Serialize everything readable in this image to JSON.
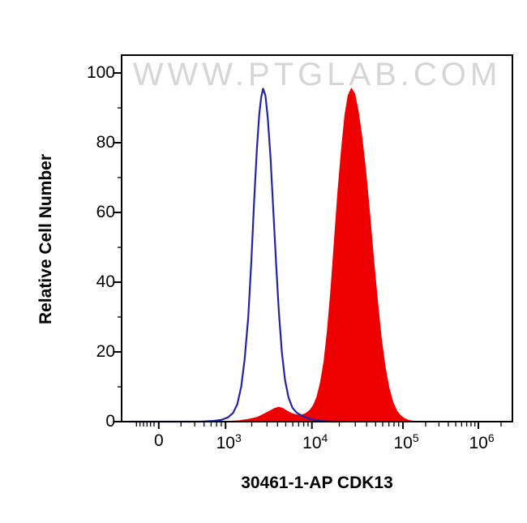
{
  "watermark": {
    "text": "WWW.PTGLAB.COM"
  },
  "chart_data": {
    "type": "area",
    "subtype": "flow-cytometry-histogram",
    "title": "30461-1-AP CDK13",
    "xlabel": "",
    "ylabel": "Relative Cell Number",
    "ylim": [
      0,
      100
    ],
    "y_ticks": [
      0,
      20,
      40,
      60,
      80,
      100
    ],
    "y_minor_ticks": [
      10,
      30,
      50,
      70,
      90
    ],
    "x_scale": "biexponential-log",
    "x_ticks": [
      {
        "text": "0",
        "sup": "",
        "f": 0.095
      },
      {
        "text": "10",
        "sup": "3",
        "f": 0.266
      },
      {
        "text": "10",
        "sup": "4",
        "f": 0.487
      },
      {
        "text": "10",
        "sup": "5",
        "f": 0.72
      },
      {
        "text": "10",
        "sup": "6",
        "f": 0.913
      }
    ],
    "x_minor_ticks_f": [
      0.038,
      0.047,
      0.056,
      0.065,
      0.074,
      0.083,
      0.152,
      0.187,
      0.211,
      0.229,
      0.243,
      0.255,
      0.333,
      0.372,
      0.399,
      0.42,
      0.438,
      0.453,
      0.466,
      0.477,
      0.557,
      0.598,
      0.627,
      0.65,
      0.668,
      0.684,
      0.697,
      0.709,
      0.778,
      0.812,
      0.836,
      0.855,
      0.87,
      0.883,
      0.894,
      0.904,
      0.971
    ],
    "grid": false,
    "legend_position": "none",
    "series": [
      {
        "name": "red-filled-histogram (CDK13 stained, peak ~2.5e4, height ~95)",
        "color": "#EE0000",
        "fill": "#EE0000",
        "points": [
          [
            0.27,
            0
          ],
          [
            0.3,
            0.2
          ],
          [
            0.325,
            0.6
          ],
          [
            0.348,
            1.2
          ],
          [
            0.366,
            2.2
          ],
          [
            0.381,
            3.1
          ],
          [
            0.393,
            3.8
          ],
          [
            0.403,
            4.1
          ],
          [
            0.413,
            3.7
          ],
          [
            0.423,
            3.0
          ],
          [
            0.433,
            2.4
          ],
          [
            0.443,
            2.0
          ],
          [
            0.453,
            1.8
          ],
          [
            0.463,
            1.9
          ],
          [
            0.473,
            2.4
          ],
          [
            0.482,
            3.2
          ],
          [
            0.491,
            4.6
          ],
          [
            0.5,
            7
          ],
          [
            0.509,
            11
          ],
          [
            0.518,
            17
          ],
          [
            0.527,
            26
          ],
          [
            0.536,
            38
          ],
          [
            0.545,
            52
          ],
          [
            0.554,
            66
          ],
          [
            0.563,
            78
          ],
          [
            0.572,
            88
          ],
          [
            0.58,
            93.5
          ],
          [
            0.588,
            95.5
          ],
          [
            0.596,
            94
          ],
          [
            0.605,
            89
          ],
          [
            0.614,
            82
          ],
          [
            0.624,
            72
          ],
          [
            0.634,
            60
          ],
          [
            0.644,
            47
          ],
          [
            0.654,
            35
          ],
          [
            0.664,
            24
          ],
          [
            0.674,
            15.5
          ],
          [
            0.684,
            9.5
          ],
          [
            0.694,
            5.5
          ],
          [
            0.704,
            3
          ],
          [
            0.714,
            1.6
          ],
          [
            0.724,
            0.8
          ],
          [
            0.735,
            0.3
          ],
          [
            0.75,
            0
          ]
        ]
      },
      {
        "name": "blue-open-histogram (control, peak ~3e3, height ~95)",
        "color": "#2323A8",
        "fill": "none",
        "points": [
          [
            0.02,
            0
          ],
          [
            0.12,
            0
          ],
          [
            0.2,
            0
          ],
          [
            0.235,
            0.2
          ],
          [
            0.255,
            0.5
          ],
          [
            0.272,
            1.2
          ],
          [
            0.285,
            2.5
          ],
          [
            0.296,
            5
          ],
          [
            0.306,
            10
          ],
          [
            0.315,
            18
          ],
          [
            0.324,
            30
          ],
          [
            0.332,
            46
          ],
          [
            0.339,
            63
          ],
          [
            0.346,
            78
          ],
          [
            0.352,
            88
          ],
          [
            0.357,
            93
          ],
          [
            0.362,
            95.5
          ],
          [
            0.368,
            93.5
          ],
          [
            0.374,
            87
          ],
          [
            0.381,
            76
          ],
          [
            0.388,
            61
          ],
          [
            0.395,
            46
          ],
          [
            0.402,
            32
          ],
          [
            0.41,
            20
          ],
          [
            0.418,
            12
          ],
          [
            0.427,
            7
          ],
          [
            0.437,
            4
          ],
          [
            0.448,
            2.6
          ],
          [
            0.459,
            1.8
          ],
          [
            0.471,
            1.2
          ],
          [
            0.484,
            0.7
          ],
          [
            0.498,
            0.4
          ],
          [
            0.515,
            0.15
          ],
          [
            0.535,
            0
          ],
          [
            0.56,
            0
          ]
        ]
      }
    ]
  }
}
